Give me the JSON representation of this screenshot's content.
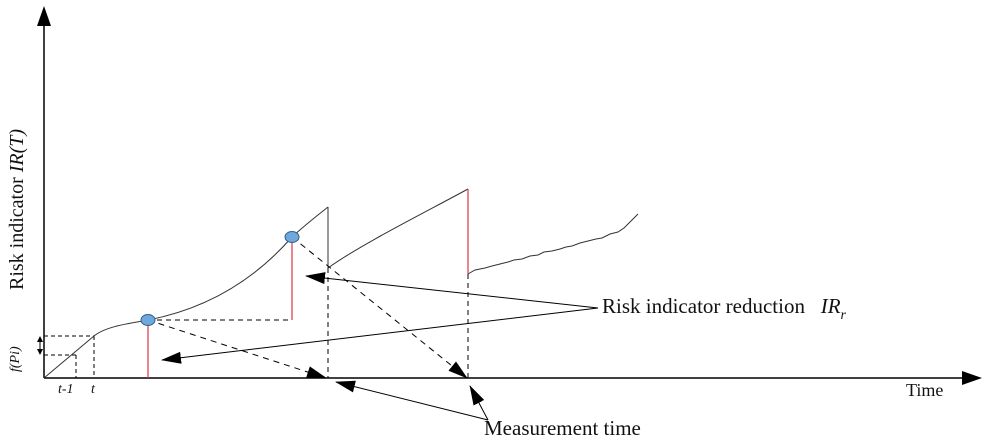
{
  "axes": {
    "y_label_prefix": "Risk indicator ",
    "y_label_symbol": "IR(T)",
    "x_label": "Time",
    "tick_t_minus_1": "t-1",
    "tick_t": "t",
    "f_label": "f(Pi)"
  },
  "annotations": {
    "reduction_text": "Risk indicator reduction",
    "reduction_symbol": "IR",
    "reduction_subscript": "r",
    "measurement_text": "Measurement time"
  },
  "colors": {
    "curve": "#333333",
    "reduction_line": "#e0353d",
    "marker_fill": "#6fa8dc",
    "marker_stroke": "#2e5f8a"
  }
}
